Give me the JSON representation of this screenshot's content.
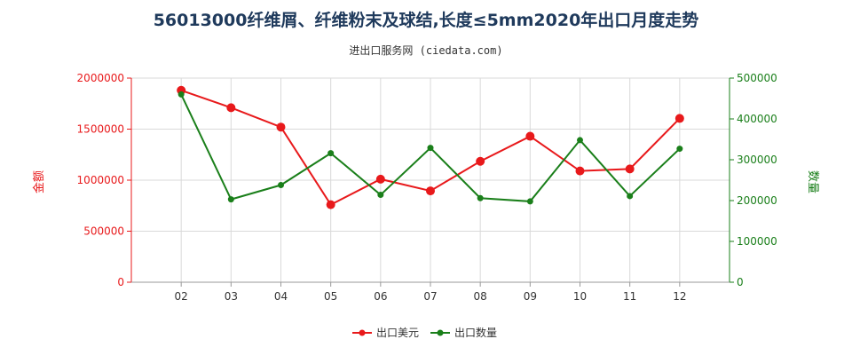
{
  "chart_data": {
    "type": "line",
    "title": "56013000纤维屑、纤维粉末及球结,长度≤5mm2020年出口月度走势",
    "subtitle": "进出口服务网 (ciedata.com)",
    "categories": [
      "02",
      "03",
      "04",
      "05",
      "06",
      "07",
      "08",
      "09",
      "10",
      "11",
      "12"
    ],
    "y_left": {
      "label": "金额",
      "ylim": [
        0,
        2000000
      ],
      "ticks": [
        "0",
        "500000",
        "1000000",
        "1500000",
        "2000000"
      ],
      "color": "#e8191b"
    },
    "y_right": {
      "label": "数量",
      "ylim": [
        0,
        500000
      ],
      "ticks": [
        "0",
        "100000",
        "200000",
        "300000",
        "400000",
        "500000"
      ],
      "color": "#1a7f1a"
    },
    "series": [
      {
        "name": "出口美元",
        "axis": "left",
        "color": "#e8191b",
        "values": [
          1880000,
          1710000,
          1520000,
          760000,
          1010000,
          895000,
          1185000,
          1430000,
          1090000,
          1110000,
          1605000
        ]
      },
      {
        "name": "出口数量",
        "axis": "right",
        "color": "#1a7f1a",
        "values": [
          460000,
          203000,
          238000,
          316000,
          214000,
          329000,
          206000,
          198000,
          348000,
          211000,
          327000
        ]
      }
    ],
    "grid": true,
    "legend_position": "bottom"
  }
}
